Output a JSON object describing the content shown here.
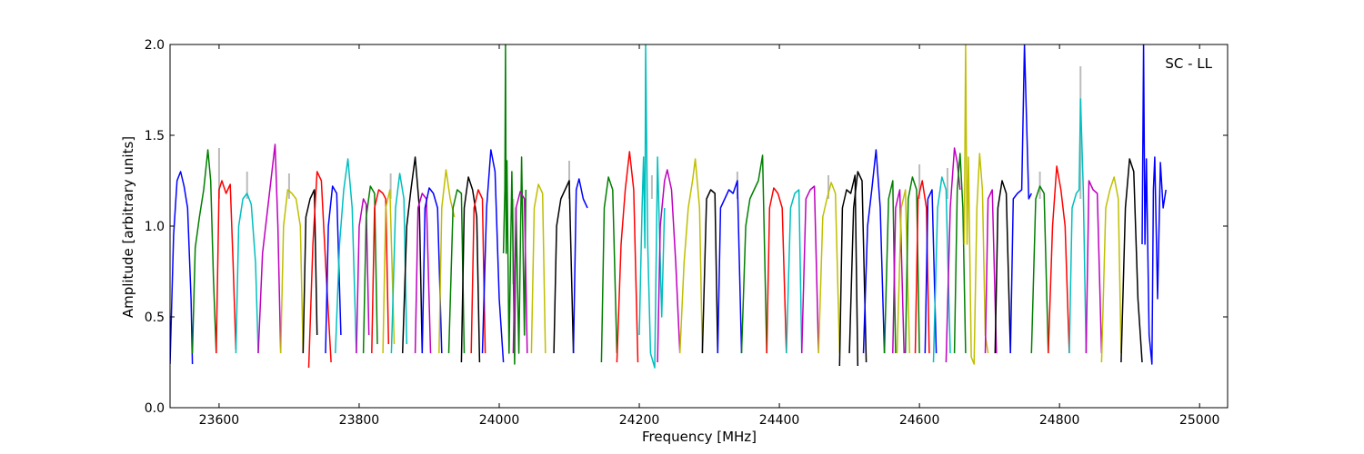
{
  "chart_data": {
    "type": "line",
    "title": "",
    "annotation": "SC - LL",
    "xlabel": "Frequency [MHz]",
    "ylabel": "Amplitude [arbitrary units]",
    "xlim": [
      23530,
      25040
    ],
    "ylim": [
      0.0,
      2.0
    ],
    "xticks": [
      23600,
      23800,
      24000,
      24200,
      24400,
      24600,
      24800,
      25000
    ],
    "xtick_labels": [
      "23600",
      "23800",
      "24000",
      "24200",
      "24400",
      "24600",
      "24800",
      "25000"
    ],
    "yticks": [
      0.0,
      0.5,
      1.0,
      1.5,
      2.0
    ],
    "ytick_labels": [
      "0.0",
      "0.5",
      "1.0",
      "1.5",
      "2.0"
    ],
    "grid": false,
    "legend": "none",
    "colors": {
      "blue": "#0000ff",
      "green": "#007f00",
      "red": "#ff0000",
      "cyan": "#00bfbf",
      "magenta": "#bf00bf",
      "olive": "#bfbf00",
      "black": "#000000",
      "spike_gray": "#bbbbbb"
    },
    "color_cycle": [
      "blue",
      "green",
      "red",
      "cyan",
      "magenta",
      "olive",
      "black"
    ],
    "series": [
      {
        "color": "blue",
        "x": [
          23530,
          23535,
          23540,
          23545,
          23550,
          23555,
          23560,
          23562
        ],
        "y": [
          0.24,
          0.95,
          1.25,
          1.3,
          1.22,
          1.1,
          0.6,
          0.24
        ]
      },
      {
        "color": "green",
        "x": [
          23562,
          23566,
          23572,
          23578,
          23584,
          23588,
          23592,
          23596
        ],
        "y": [
          0.3,
          0.88,
          1.05,
          1.2,
          1.42,
          1.25,
          0.7,
          0.3
        ]
      },
      {
        "color": "red",
        "x": [
          23596,
          23600,
          23604,
          23610,
          23616,
          23620,
          23624
        ],
        "y": [
          0.3,
          1.2,
          1.25,
          1.18,
          1.23,
          0.8,
          0.32
        ]
      },
      {
        "color": "cyan",
        "x": [
          23624,
          23628,
          23634,
          23640,
          23646,
          23652,
          23656
        ],
        "y": [
          0.3,
          1.0,
          1.15,
          1.18,
          1.12,
          0.8,
          0.3
        ]
      },
      {
        "color": "magenta",
        "x": [
          23656,
          23662,
          23668,
          23674,
          23680,
          23684,
          23688
        ],
        "y": [
          0.3,
          0.85,
          1.05,
          1.25,
          1.45,
          1.0,
          0.3
        ]
      },
      {
        "color": "olive",
        "x": [
          23688,
          23692,
          23698,
          23704,
          23710,
          23716,
          23720
        ],
        "y": [
          0.3,
          1.0,
          1.2,
          1.18,
          1.15,
          1.0,
          0.3
        ]
      },
      {
        "color": "black",
        "x": [
          23720,
          23724,
          23730,
          23736,
          23740
        ],
        "y": [
          0.3,
          1.05,
          1.15,
          1.2,
          0.4
        ]
      },
      {
        "color": "red",
        "x": [
          23728,
          23734,
          23740,
          23746,
          23752,
          23760
        ],
        "y": [
          0.22,
          0.9,
          1.3,
          1.25,
          0.8,
          0.25
        ]
      },
      {
        "color": "blue",
        "x": [
          23752,
          23756,
          23762,
          23768,
          23774
        ],
        "y": [
          0.3,
          1.0,
          1.22,
          1.18,
          0.4
        ]
      },
      {
        "color": "cyan",
        "x": [
          23766,
          23772,
          23778,
          23784,
          23790,
          23796
        ],
        "y": [
          0.3,
          0.9,
          1.2,
          1.37,
          1.1,
          0.3
        ]
      },
      {
        "color": "magenta",
        "x": [
          23796,
          23800,
          23806,
          23810,
          23814
        ],
        "y": [
          0.3,
          1.0,
          1.15,
          1.12,
          0.4
        ]
      },
      {
        "color": "green",
        "x": [
          23806,
          23810,
          23816,
          23822,
          23826
        ],
        "y": [
          0.3,
          1.05,
          1.22,
          1.18,
          0.35
        ]
      },
      {
        "color": "red",
        "x": [
          23818,
          23822,
          23828,
          23834,
          23838,
          23842
        ],
        "y": [
          0.3,
          1.1,
          1.2,
          1.18,
          1.15,
          0.35
        ]
      },
      {
        "color": "olive",
        "x": [
          23834,
          23838,
          23844,
          23850
        ],
        "y": [
          0.3,
          1.1,
          1.2,
          0.35
        ]
      },
      {
        "color": "cyan",
        "x": [
          23846,
          23852,
          23858,
          23864,
          23868
        ],
        "y": [
          0.3,
          1.1,
          1.29,
          1.15,
          0.35
        ]
      },
      {
        "color": "black",
        "x": [
          23862,
          23868,
          23874,
          23880,
          23886,
          23890
        ],
        "y": [
          0.3,
          1.0,
          1.2,
          1.38,
          1.1,
          0.3
        ]
      },
      {
        "color": "magenta",
        "x": [
          23880,
          23884,
          23890,
          23896,
          23902
        ],
        "y": [
          0.3,
          1.1,
          1.18,
          1.15,
          0.3
        ]
      },
      {
        "color": "blue",
        "x": [
          23890,
          23894,
          23900,
          23906,
          23912,
          23918
        ],
        "y": [
          0.3,
          1.1,
          1.21,
          1.18,
          1.1,
          0.3
        ]
      },
      {
        "color": "olive",
        "x": [
          23914,
          23918,
          23924,
          23930,
          23936
        ],
        "y": [
          0.3,
          1.1,
          1.31,
          1.15,
          1.05
        ]
      },
      {
        "color": "green",
        "x": [
          23928,
          23934,
          23940,
          23946,
          23950
        ],
        "y": [
          0.3,
          1.1,
          1.2,
          1.18,
          0.3
        ]
      },
      {
        "color": "black",
        "x": [
          23946,
          23950,
          23956,
          23962,
          23968,
          23972
        ],
        "y": [
          0.25,
          1.1,
          1.27,
          1.2,
          1.05,
          0.25
        ]
      },
      {
        "color": "red",
        "x": [
          23960,
          23964,
          23970,
          23976,
          23980
        ],
        "y": [
          0.3,
          1.1,
          1.2,
          1.15,
          0.3
        ]
      },
      {
        "color": "blue",
        "x": [
          23976,
          23982,
          23988,
          23994,
          24000,
          24006
        ],
        "y": [
          0.3,
          1.1,
          1.42,
          1.3,
          0.6,
          0.25
        ]
      },
      {
        "color": "green",
        "x": [
          24006,
          24008,
          24009,
          24010,
          24011,
          24014,
          24018,
          24022,
          24024,
          24028,
          24032,
          24036,
          24038
        ],
        "y": [
          0.85,
          1.2,
          2.0,
          0.85,
          1.36,
          0.3,
          1.3,
          0.24,
          1.1,
          0.3,
          1.38,
          0.4,
          1.2
        ]
      },
      {
        "color": "magenta",
        "x": [
          24020,
          24024,
          24030,
          24036,
          24040
        ],
        "y": [
          0.3,
          1.1,
          1.19,
          1.15,
          0.3
        ]
      },
      {
        "color": "olive",
        "x": [
          24046,
          24050,
          24056,
          24062,
          24066
        ],
        "y": [
          0.3,
          1.1,
          1.23,
          1.18,
          0.3
        ]
      },
      {
        "color": "black",
        "x": [
          24078,
          24082,
          24088,
          24094,
          24100,
          24106
        ],
        "y": [
          0.3,
          1.0,
          1.15,
          1.2,
          1.25,
          0.3
        ]
      },
      {
        "color": "blue",
        "x": [
          24106,
          24110,
          24114,
          24120,
          24126
        ],
        "y": [
          0.3,
          1.2,
          1.26,
          1.15,
          1.1
        ]
      },
      {
        "color": "green",
        "x": [
          24146,
          24150,
          24156,
          24162,
          24168
        ],
        "y": [
          0.25,
          1.1,
          1.27,
          1.2,
          0.3
        ]
      },
      {
        "color": "red",
        "x": [
          24168,
          24174,
          24180,
          24186,
          24192,
          24198
        ],
        "y": [
          0.25,
          0.9,
          1.2,
          1.41,
          1.2,
          0.25
        ]
      },
      {
        "color": "cyan",
        "x": [
          24200,
          24204,
          24206,
          24208,
          24209,
          24212,
          24216,
          24222,
          24226,
          24232,
          24236
        ],
        "y": [
          0.4,
          1.1,
          1.38,
          0.88,
          2.0,
          0.9,
          0.3,
          0.22,
          1.38,
          0.5,
          1.1
        ]
      },
      {
        "color": "magenta",
        "x": [
          24226,
          24230,
          24236,
          24240,
          24246,
          24252,
          24258
        ],
        "y": [
          0.25,
          1.0,
          1.25,
          1.31,
          1.2,
          0.8,
          0.3
        ]
      },
      {
        "color": "olive",
        "x": [
          24258,
          24264,
          24270,
          24276,
          24280,
          24286,
          24290
        ],
        "y": [
          0.3,
          0.8,
          1.1,
          1.25,
          1.37,
          1.1,
          0.3
        ]
      },
      {
        "color": "black",
        "x": [
          24290,
          24296,
          24302,
          24308,
          24312
        ],
        "y": [
          0.3,
          1.15,
          1.2,
          1.18,
          0.3
        ]
      },
      {
        "color": "blue",
        "x": [
          24312,
          24316,
          24322,
          24328,
          24334,
          24340,
          24346
        ],
        "y": [
          0.3,
          1.1,
          1.15,
          1.2,
          1.18,
          1.25,
          0.3
        ]
      },
      {
        "color": "green",
        "x": [
          24346,
          24352,
          24358,
          24364,
          24370,
          24376,
          24382
        ],
        "y": [
          0.3,
          1.0,
          1.15,
          1.2,
          1.25,
          1.39,
          0.3
        ]
      },
      {
        "color": "red",
        "x": [
          24382,
          24386,
          24392,
          24398,
          24404,
          24410
        ],
        "y": [
          0.3,
          1.1,
          1.21,
          1.18,
          1.1,
          0.3
        ]
      },
      {
        "color": "cyan",
        "x": [
          24410,
          24416,
          24422,
          24428,
          24432
        ],
        "y": [
          0.3,
          1.1,
          1.18,
          1.2,
          0.3
        ]
      },
      {
        "color": "magenta",
        "x": [
          24432,
          24438,
          24444,
          24450,
          24456
        ],
        "y": [
          0.3,
          1.15,
          1.2,
          1.22,
          0.3
        ]
      },
      {
        "color": "olive",
        "x": [
          24456,
          24462,
          24468,
          24474,
          24480,
          24486
        ],
        "y": [
          0.3,
          1.05,
          1.15,
          1.24,
          1.18,
          0.3
        ]
      },
      {
        "color": "black",
        "x": [
          24486,
          24490,
          24496,
          24502,
          24508,
          24512
        ],
        "y": [
          0.23,
          1.1,
          1.2,
          1.18,
          1.28,
          0.23
        ]
      },
      {
        "color": "black",
        "x": [
          24500,
          24506,
          24512,
          24518,
          24524
        ],
        "y": [
          0.3,
          1.1,
          1.3,
          1.25,
          0.25
        ]
      },
      {
        "color": "blue",
        "x": [
          24520,
          24526,
          24532,
          24538,
          24544,
          24550
        ],
        "y": [
          0.3,
          1.0,
          1.2,
          1.42,
          1.1,
          0.3
        ]
      },
      {
        "color": "green",
        "x": [
          24550,
          24556,
          24562,
          24566
        ],
        "y": [
          0.3,
          1.15,
          1.25,
          0.3
        ]
      },
      {
        "color": "magenta",
        "x": [
          24562,
          24566,
          24572,
          24578
        ],
        "y": [
          0.3,
          1.1,
          1.2,
          0.3
        ]
      },
      {
        "color": "olive",
        "x": [
          24568,
          24574,
          24580,
          24586
        ],
        "y": [
          0.3,
          1.1,
          1.2,
          0.3
        ]
      },
      {
        "color": "green",
        "x": [
          24580,
          24584,
          24590,
          24596,
          24600
        ],
        "y": [
          0.3,
          1.15,
          1.27,
          1.2,
          0.3
        ]
      },
      {
        "color": "red",
        "x": [
          24594,
          24598,
          24604,
          24610,
          24614
        ],
        "y": [
          0.3,
          1.15,
          1.25,
          1.1,
          0.3
        ]
      },
      {
        "color": "blue",
        "x": [
          24608,
          24612,
          24618,
          24624
        ],
        "y": [
          0.3,
          1.15,
          1.2,
          0.3
        ]
      },
      {
        "color": "cyan",
        "x": [
          24620,
          24626,
          24632,
          24638,
          24644
        ],
        "y": [
          0.25,
          1.1,
          1.27,
          1.2,
          0.3
        ]
      },
      {
        "color": "magenta",
        "x": [
          24638,
          24644,
          24650,
          24654,
          24658
        ],
        "y": [
          0.25,
          1.1,
          1.43,
          1.35,
          1.2
        ]
      },
      {
        "color": "green",
        "x": [
          24650,
          24654,
          24658,
          24662,
          24666
        ],
        "y": [
          0.3,
          1.2,
          1.4,
          1.1,
          0.3
        ]
      },
      {
        "color": "olive",
        "x": [
          24664,
          24666,
          24668,
          24670,
          24674,
          24678,
          24682,
          24686,
          24690,
          24694,
          24698
        ],
        "y": [
          0.9,
          2.0,
          0.9,
          1.38,
          0.28,
          0.24,
          1.1,
          1.4,
          1.2,
          0.4,
          0.3
        ]
      },
      {
        "color": "magenta",
        "x": [
          24694,
          24698,
          24704,
          24710
        ],
        "y": [
          0.3,
          1.15,
          1.2,
          0.3
        ]
      },
      {
        "color": "black",
        "x": [
          24708,
          24712,
          24718,
          24724,
          24730
        ],
        "y": [
          0.3,
          1.1,
          1.25,
          1.18,
          0.3
        ]
      },
      {
        "color": "blue",
        "x": [
          24730,
          24734,
          24740,
          24746,
          24750,
          24756,
          24760
        ],
        "y": [
          0.3,
          1.15,
          1.18,
          1.2,
          2.0,
          1.15,
          1.18
        ]
      },
      {
        "color": "green",
        "x": [
          24760,
          24766,
          24772,
          24778,
          24784
        ],
        "y": [
          0.3,
          1.15,
          1.22,
          1.18,
          0.3
        ]
      },
      {
        "color": "red",
        "x": [
          24784,
          24790,
          24796,
          24802,
          24808,
          24814
        ],
        "y": [
          0.3,
          1.0,
          1.33,
          1.2,
          1.0,
          0.3
        ]
      },
      {
        "color": "cyan",
        "x": [
          24814,
          24818,
          24824,
          24828,
          24830,
          24834,
          24838
        ],
        "y": [
          0.3,
          1.1,
          1.18,
          1.2,
          1.7,
          1.2,
          0.3
        ]
      },
      {
        "color": "magenta",
        "x": [
          24838,
          24842,
          24848,
          24854,
          24860
        ],
        "y": [
          0.3,
          1.25,
          1.2,
          1.18,
          0.3
        ]
      },
      {
        "color": "olive",
        "x": [
          24860,
          24866,
          24872,
          24878,
          24884,
          24888
        ],
        "y": [
          0.25,
          1.1,
          1.2,
          1.27,
          1.15,
          0.3
        ]
      },
      {
        "color": "black",
        "x": [
          24888,
          24894,
          24900,
          24906,
          24912,
          24918
        ],
        "y": [
          0.25,
          1.1,
          1.37,
          1.3,
          0.6,
          0.25
        ]
      },
      {
        "color": "blue",
        "x": [
          24918,
          24920,
          24922,
          24924,
          24928,
          24932,
          24934,
          24936,
          24940,
          24944,
          24948,
          24952
        ],
        "y": [
          0.9,
          2.0,
          0.9,
          1.37,
          0.4,
          0.24,
          1.2,
          1.38,
          0.6,
          1.35,
          1.1,
          1.2
        ]
      }
    ],
    "gray_spikes": [
      {
        "x": 23600,
        "y": 1.43
      },
      {
        "x": 23640,
        "y": 1.3
      },
      {
        "x": 23700,
        "y": 1.29
      },
      {
        "x": 23845,
        "y": 1.29
      },
      {
        "x": 24020,
        "y": 0.68
      },
      {
        "x": 24100,
        "y": 1.36
      },
      {
        "x": 24218,
        "y": 1.28
      },
      {
        "x": 24340,
        "y": 1.3
      },
      {
        "x": 24470,
        "y": 1.28
      },
      {
        "x": 24600,
        "y": 1.34
      },
      {
        "x": 24640,
        "y": 1.32
      },
      {
        "x": 24772,
        "y": 1.3
      },
      {
        "x": 24830,
        "y": 1.88
      }
    ]
  }
}
